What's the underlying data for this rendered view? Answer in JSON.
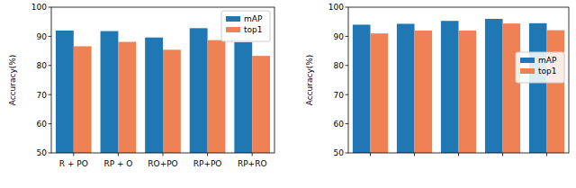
{
  "chart_data": [
    {
      "type": "bar",
      "y_label": "Accuracy(%)",
      "categories": [
        "R + PO",
        "RP + O",
        "RO+PO",
        "RP+PO",
        "RP+RO"
      ],
      "series": [
        {
          "name": "mAP",
          "color": "#1f77b4",
          "values": [
            92,
            91.8,
            89.6,
            92.8,
            88
          ]
        },
        {
          "name": "top1",
          "color": "#ee8254",
          "values": [
            86.6,
            88.1,
            85.4,
            88.7,
            83.3
          ]
        }
      ],
      "ylim": [
        50,
        100
      ],
      "yticks": [
        50,
        60,
        70,
        80,
        90,
        100
      ],
      "legend": "upper right"
    },
    {
      "type": "bar",
      "y_label": "Accuracy(%)",
      "categories": [
        null,
        null,
        null,
        null,
        null
      ],
      "series": [
        {
          "name": "mAP",
          "color": "#1f77b4",
          "values": [
            94,
            94.3,
            95.3,
            96,
            94.5
          ]
        },
        {
          "name": "top1",
          "color": "#ee8254",
          "values": [
            91,
            92,
            92,
            94.4,
            92.1
          ]
        }
      ],
      "ylim": [
        50,
        100
      ],
      "yticks": [
        50,
        60,
        70,
        80,
        90,
        100
      ],
      "legend": "center right",
      "tick_labels": "y"
    }
  ]
}
